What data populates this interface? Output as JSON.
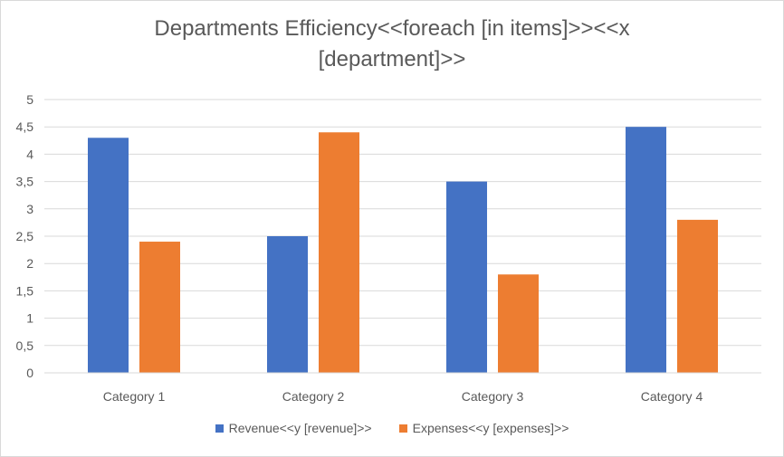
{
  "chart_data": {
    "type": "bar",
    "title": "Departments Efficiency<<foreach [in items]>><<x [department]>>",
    "categories": [
      "Category 1",
      "Category 2",
      "Category 3",
      "Category 4"
    ],
    "series": [
      {
        "name": "Revenue<<y [revenue]>>",
        "values": [
          4.3,
          2.5,
          3.5,
          4.5
        ],
        "color": "#4472C4"
      },
      {
        "name": "Expenses<<y [expenses]>>",
        "values": [
          2.4,
          4.4,
          1.8,
          2.8
        ],
        "color": "#ED7D31"
      }
    ],
    "ylim": [
      0,
      5
    ],
    "yticks": [
      "0",
      "0,5",
      "1",
      "1,5",
      "2",
      "2,5",
      "3",
      "3,5",
      "4",
      "4,5",
      "5"
    ],
    "ytick_values": [
      0,
      0.5,
      1,
      1.5,
      2,
      2.5,
      3,
      3.5,
      4,
      4.5,
      5
    ],
    "xlabel": "",
    "ylabel": "",
    "grid": true,
    "legend_position": "bottom"
  }
}
